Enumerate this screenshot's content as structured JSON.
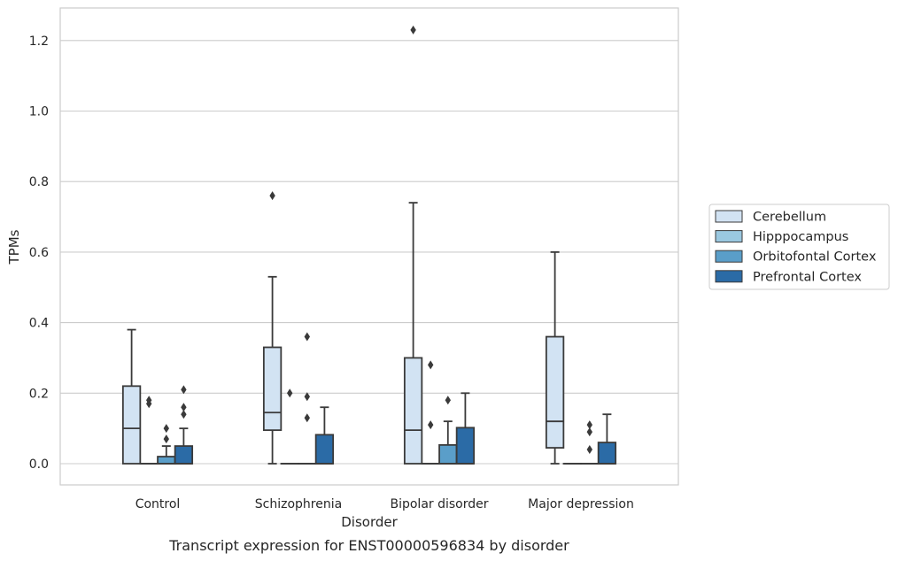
{
  "chart_data": {
    "type": "box",
    "xlabel": "Disorder",
    "ylabel": "TPMs",
    "caption": "Transcript expression for ENST00000596834 by disorder",
    "ylim": [
      -0.06,
      1.29
    ],
    "yticks": [
      0.0,
      0.2,
      0.4,
      0.6,
      0.8,
      1.0,
      1.2
    ],
    "ytick_labels": [
      "0.0",
      "0.2",
      "0.4",
      "0.6",
      "0.8",
      "1.0",
      "1.2"
    ],
    "grid": "horizontal",
    "legend_position": "right-center",
    "categories": [
      "Control",
      "Schizophrenia",
      "Bipolar disorder",
      "Major depression"
    ],
    "series": [
      {
        "name": "Cerebellum",
        "color": "#d2e3f3",
        "boxes": [
          {
            "whislo": 0.0,
            "q1": 0.0,
            "med": 0.1,
            "q3": 0.22,
            "whishi": 0.38,
            "fliers": []
          },
          {
            "whislo": 0.0,
            "q1": 0.095,
            "med": 0.145,
            "q3": 0.33,
            "whishi": 0.53,
            "fliers": [
              0.76
            ]
          },
          {
            "whislo": 0.0,
            "q1": 0.0,
            "med": 0.095,
            "q3": 0.3,
            "whishi": 0.74,
            "fliers": [
              1.23
            ]
          },
          {
            "whislo": 0.0,
            "q1": 0.045,
            "med": 0.12,
            "q3": 0.36,
            "whishi": 0.6,
            "fliers": []
          }
        ]
      },
      {
        "name": "Hipppocampus",
        "color": "#9ac8e0",
        "boxes": [
          {
            "whislo": 0.0,
            "q1": 0.0,
            "med": 0.0,
            "q3": 0.0,
            "whishi": 0.0,
            "fliers": [
              0.17,
              0.18
            ]
          },
          {
            "whislo": 0.0,
            "q1": 0.0,
            "med": 0.0,
            "q3": 0.0,
            "whishi": 0.0,
            "fliers": [
              0.2
            ]
          },
          {
            "whislo": 0.0,
            "q1": 0.0,
            "med": 0.0,
            "q3": 0.0,
            "whishi": 0.0,
            "fliers": [
              0.11,
              0.28
            ]
          },
          {
            "whislo": 0.0,
            "q1": 0.0,
            "med": 0.0,
            "q3": 0.0,
            "whishi": 0.0,
            "fliers": []
          }
        ]
      },
      {
        "name": "Orbitofontal Cortex",
        "color": "#5a9ec9",
        "boxes": [
          {
            "whislo": 0.0,
            "q1": 0.0,
            "med": 0.0,
            "q3": 0.02,
            "whishi": 0.05,
            "fliers": [
              0.07,
              0.1
            ]
          },
          {
            "whislo": 0.0,
            "q1": 0.0,
            "med": 0.0,
            "q3": 0.0,
            "whishi": 0.0,
            "fliers": [
              0.13,
              0.19,
              0.36
            ]
          },
          {
            "whislo": 0.0,
            "q1": 0.0,
            "med": 0.0,
            "q3": 0.053,
            "whishi": 0.12,
            "fliers": [
              0.18
            ]
          },
          {
            "whislo": 0.0,
            "q1": 0.0,
            "med": 0.0,
            "q3": 0.0,
            "whishi": 0.0,
            "fliers": [
              0.04,
              0.09,
              0.11
            ]
          }
        ]
      },
      {
        "name": "Prefrontal Cortex",
        "color": "#2b6ba6",
        "boxes": [
          {
            "whislo": 0.0,
            "q1": 0.0,
            "med": 0.0,
            "q3": 0.05,
            "whishi": 0.1,
            "fliers": [
              0.14,
              0.16,
              0.21
            ]
          },
          {
            "whislo": 0.0,
            "q1": 0.0,
            "med": 0.0,
            "q3": 0.082,
            "whishi": 0.16,
            "fliers": []
          },
          {
            "whislo": 0.0,
            "q1": 0.0,
            "med": 0.0,
            "q3": 0.102,
            "whishi": 0.2,
            "fliers": []
          },
          {
            "whislo": 0.0,
            "q1": 0.0,
            "med": 0.0,
            "q3": 0.06,
            "whishi": 0.14,
            "fliers": []
          }
        ]
      }
    ]
  }
}
